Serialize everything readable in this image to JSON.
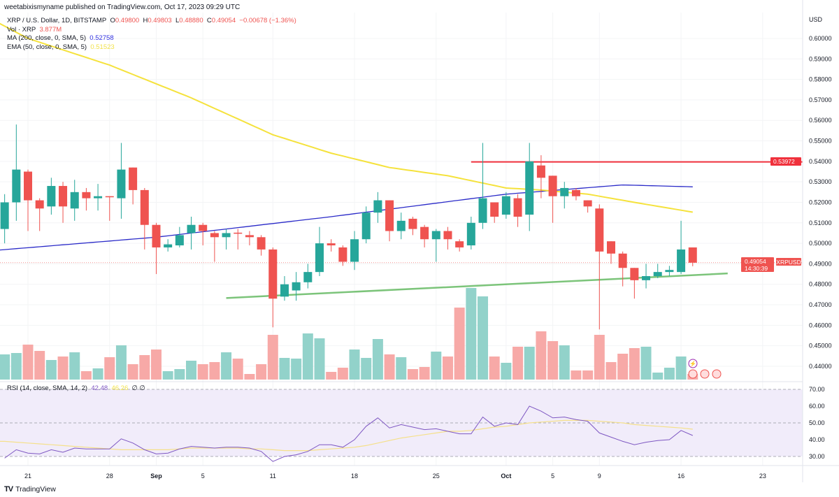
{
  "header": {
    "publisher_line": "weetabixismyname published on TradingView.com, Oct 17, 2023 09:29 UTC"
  },
  "legend": {
    "symbol": "XRP / U.S. Dollar, 1D, BITSTAMP",
    "open_label": "O",
    "open": "0.49800",
    "high_label": "H",
    "high": "0.49803",
    "low_label": "L",
    "low": "0.48880",
    "close_label": "C",
    "close": "0.49054",
    "change": "−0.00678 (−1.36%)",
    "vol_label": "Vol · XRP",
    "vol_value": "3.877M",
    "ma_label": "MA (200, close, 0, SMA, 5)",
    "ma_value": "0.52758",
    "ema_label": "EMA (50, close, 0, SMA, 5)",
    "ema_value": "0.51523"
  },
  "rsi_legend": {
    "label": "RSI (14, close, SMA, 14, 2)",
    "rsi_value": "42.48",
    "sma_value": "46.26",
    "extra": "∅ ∅"
  },
  "price_axis": {
    "currency": "USD",
    "ticks": [
      "0.60000",
      "0.59000",
      "0.58000",
      "0.57000",
      "0.56000",
      "0.55000",
      "0.54000",
      "0.53000",
      "0.52000",
      "0.51000",
      "0.50000",
      "0.49000",
      "0.48000",
      "0.47000",
      "0.46000",
      "0.45000",
      "0.44000"
    ]
  },
  "rsi_axis": {
    "ticks": [
      "70.00",
      "60.00",
      "50.00",
      "40.00",
      "30.00"
    ]
  },
  "tags": {
    "symbol": "XRPUSD",
    "last_price": "0.49054",
    "countdown": "14:30:39",
    "resistance": "0.53972"
  },
  "date_axis": [
    {
      "label": "21",
      "bold": false
    },
    {
      "label": "28",
      "bold": false
    },
    {
      "label": "Sep",
      "bold": true
    },
    {
      "label": "5",
      "bold": false
    },
    {
      "label": "11",
      "bold": false
    },
    {
      "label": "18",
      "bold": false
    },
    {
      "label": "25",
      "bold": false
    },
    {
      "label": "Oct",
      "bold": true
    },
    {
      "label": "5",
      "bold": false
    },
    {
      "label": "9",
      "bold": false
    },
    {
      "label": "16",
      "bold": false
    },
    {
      "label": "23",
      "bold": false
    }
  ],
  "footer": {
    "brand": "TradingView",
    "logo": "TV"
  },
  "colors": {
    "up": "#26a69a",
    "down": "#ef5350",
    "vol_up": "#92d2ca",
    "vol_down": "#f7a9a7",
    "ma": "#2a2ac8",
    "ema": "#f5e23c",
    "resistance": "#f0313c",
    "support": "#7cc47a",
    "rsi": "#7e57c2",
    "rsi_sma": "#f5e08a",
    "rsi_band": "#f1ecfa"
  },
  "chart_data": {
    "type": "candlestick",
    "first_date": "2023-08-19",
    "last_date": "2023-10-17",
    "ylim": [
      0.44,
      0.6
    ],
    "ohlc": [
      [
        0.507,
        0.524,
        0.5,
        0.52
      ],
      [
        0.52,
        0.558,
        0.511,
        0.536
      ],
      [
        0.535,
        0.536,
        0.506,
        0.521
      ],
      [
        0.521,
        0.522,
        0.506,
        0.517
      ],
      [
        0.518,
        0.532,
        0.514,
        0.528
      ],
      [
        0.528,
        0.53,
        0.51,
        0.518
      ],
      [
        0.517,
        0.531,
        0.511,
        0.525
      ],
      [
        0.525,
        0.527,
        0.516,
        0.522
      ],
      [
        0.522,
        0.529,
        0.516,
        0.523
      ],
      [
        0.523,
        0.523,
        0.511,
        0.5225
      ],
      [
        0.522,
        0.549,
        0.512,
        0.536
      ],
      [
        0.537,
        0.537,
        0.519,
        0.526
      ],
      [
        0.526,
        0.527,
        0.497,
        0.509
      ],
      [
        0.509,
        0.51,
        0.485,
        0.498
      ],
      [
        0.498,
        0.502,
        0.496,
        0.4995
      ],
      [
        0.499,
        0.508,
        0.498,
        0.504
      ],
      [
        0.505,
        0.513,
        0.497,
        0.509
      ],
      [
        0.509,
        0.51,
        0.499,
        0.506
      ],
      [
        0.505,
        0.506,
        0.491,
        0.503
      ],
      [
        0.503,
        0.507,
        0.497,
        0.505
      ],
      [
        0.5052,
        0.507,
        0.497,
        0.505
      ],
      [
        0.504,
        0.506,
        0.499,
        0.503
      ],
      [
        0.503,
        0.504,
        0.494,
        0.497
      ],
      [
        0.497,
        0.498,
        0.459,
        0.473
      ],
      [
        0.474,
        0.484,
        0.472,
        0.48
      ],
      [
        0.477,
        0.486,
        0.472,
        0.481
      ],
      [
        0.481,
        0.49,
        0.478,
        0.486
      ],
      [
        0.486,
        0.508,
        0.484,
        0.5
      ],
      [
        0.5,
        0.502,
        0.496,
        0.499
      ],
      [
        0.498,
        0.499,
        0.489,
        0.491
      ],
      [
        0.491,
        0.506,
        0.487,
        0.502
      ],
      [
        0.502,
        0.518,
        0.5,
        0.515
      ],
      [
        0.515,
        0.525,
        0.51,
        0.521
      ],
      [
        0.521,
        0.521,
        0.501,
        0.506
      ],
      [
        0.506,
        0.515,
        0.502,
        0.511
      ],
      [
        0.512,
        0.513,
        0.504,
        0.507
      ],
      [
        0.508,
        0.509,
        0.498,
        0.502
      ],
      [
        0.502,
        0.507,
        0.491,
        0.506
      ],
      [
        0.506,
        0.508,
        0.497,
        0.502
      ],
      [
        0.501,
        0.502,
        0.496,
        0.498
      ],
      [
        0.499,
        0.513,
        0.497,
        0.51
      ],
      [
        0.51,
        0.549,
        0.507,
        0.522
      ],
      [
        0.52,
        0.52,
        0.51,
        0.513
      ],
      [
        0.514,
        0.525,
        0.512,
        0.523
      ],
      [
        0.522,
        0.524,
        0.508,
        0.513
      ],
      [
        0.514,
        0.549,
        0.506,
        0.54
      ],
      [
        0.538,
        0.543,
        0.522,
        0.532
      ],
      [
        0.533,
        0.533,
        0.51,
        0.523
      ],
      [
        0.523,
        0.53,
        0.517,
        0.527
      ],
      [
        0.526,
        0.527,
        0.521,
        0.523
      ],
      [
        0.521,
        0.521,
        0.515,
        0.518
      ],
      [
        0.517,
        0.519,
        0.458,
        0.496
      ],
      [
        0.501,
        0.501,
        0.49,
        0.495
      ],
      [
        0.495,
        0.496,
        0.479,
        0.488
      ],
      [
        0.488,
        0.488,
        0.473,
        0.482
      ],
      [
        0.482,
        0.49,
        0.478,
        0.484
      ],
      [
        0.484,
        0.49,
        0.483,
        0.486
      ],
      [
        0.486,
        0.489,
        0.484,
        0.487
      ],
      [
        0.486,
        0.511,
        0.485,
        0.497
      ],
      [
        0.498,
        0.498,
        0.4888,
        0.49054
      ]
    ],
    "volume": [
      36,
      38,
      50,
      41,
      28,
      33,
      39,
      12,
      16,
      32,
      49,
      22,
      35,
      43,
      12,
      15,
      27,
      22,
      25,
      39,
      30,
      8,
      22,
      64,
      31,
      30,
      66,
      59,
      11,
      17,
      43,
      31,
      58,
      36,
      32,
      15,
      18,
      40,
      33,
      103,
      131,
      119,
      33,
      24,
      47,
      47,
      69,
      55,
      49,
      13,
      13,
      64,
      25,
      37,
      45,
      47,
      10,
      17,
      33,
      8
    ],
    "ma200_points": [
      [
        -2,
        0.496
      ],
      [
        13,
        0.503
      ],
      [
        28,
        0.513
      ],
      [
        43,
        0.524
      ],
      [
        53,
        0.5285
      ],
      [
        59,
        0.52758
      ]
    ],
    "ema50_points": [
      [
        -2,
        0.612
      ],
      [
        2,
        0.6
      ],
      [
        9,
        0.587
      ],
      [
        16,
        0.571
      ],
      [
        23,
        0.553
      ],
      [
        28,
        0.544
      ],
      [
        33,
        0.537
      ],
      [
        38,
        0.533
      ],
      [
        43,
        0.527
      ],
      [
        46,
        0.526
      ],
      [
        50,
        0.524
      ],
      [
        54,
        0.52
      ],
      [
        59,
        0.51523
      ]
    ],
    "resistance": {
      "price": 0.53972,
      "from_index": 40
    },
    "support": {
      "from": [
        19,
        0.4733
      ],
      "to": [
        62,
        0.4853
      ]
    },
    "rsi": [
      29,
      34,
      32,
      31.5,
      34,
      32.5,
      35,
      34.5,
      34.5,
      34.5,
      40.5,
      38,
      34,
      31.5,
      32,
      34.5,
      36,
      35.5,
      35,
      35.5,
      35.5,
      35,
      33,
      27,
      30,
      31,
      33,
      37,
      37,
      35.5,
      40,
      48,
      53,
      47,
      49,
      47.5,
      46,
      46.5,
      45,
      43.5,
      43.5,
      53.5,
      48,
      50,
      49,
      60,
      57,
      53,
      53.5,
      52,
      51,
      44,
      41.5,
      39,
      37,
      38.5,
      39.5,
      40,
      45.5,
      42.48
    ],
    "rsi_sma": [
      39,
      38.5,
      38,
      37.5,
      37,
      36.5,
      36,
      35.5,
      35,
      34.5,
      34,
      34,
      34,
      34,
      34,
      34.5,
      35,
      35,
      35,
      35,
      35,
      34.5,
      34.5,
      34,
      33.5,
      33.5,
      33.5,
      34,
      34.5,
      35,
      35.5,
      36.5,
      38,
      39.5,
      41,
      42,
      43,
      44,
      45,
      45,
      45.5,
      46.5,
      47.5,
      48,
      49,
      50,
      50.5,
      51,
      51.5,
      51.5,
      51.5,
      51,
      50.5,
      50,
      49,
      48.5,
      48,
      47.5,
      47,
      46.26
    ],
    "rsi_levels": [
      70,
      50,
      30
    ],
    "rsi_ylim": [
      30,
      70
    ]
  }
}
